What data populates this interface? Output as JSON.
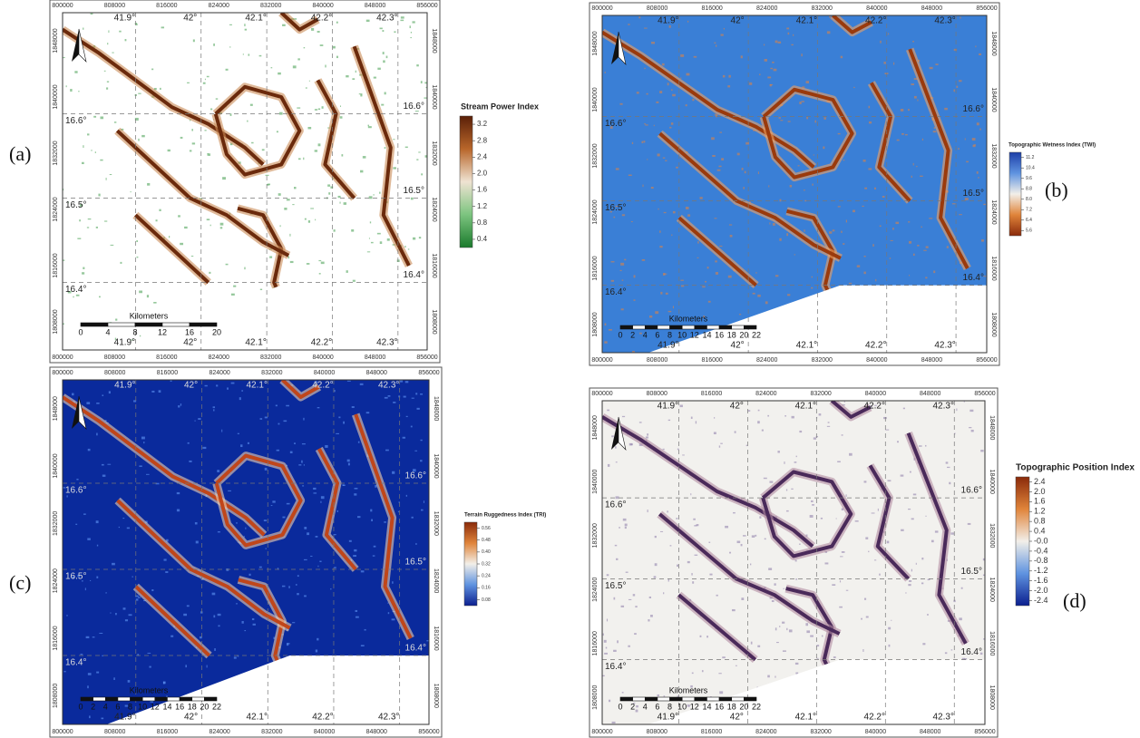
{
  "grid": {
    "eastings": [
      "800000",
      "808000",
      "816000",
      "824000",
      "832000",
      "840000",
      "848000",
      "856000"
    ],
    "northings": [
      "1848000",
      "1840000",
      "1832000",
      "1824000",
      "1816000",
      "1808000"
    ],
    "longitudes": [
      "41.9°",
      "42°",
      "42.1°",
      "42.2°",
      "42.3°"
    ],
    "latitudes": [
      "16.6°",
      "16.5°",
      "16.4°"
    ]
  },
  "panels": [
    {
      "label": "(a)",
      "legend_title": "Stream Power Index",
      "legend_ticks": [
        "3.2",
        "2.8",
        "2.4",
        "2.0",
        "1.6",
        "1.2",
        "0.8",
        "0.4"
      ],
      "legend_colors": [
        "#5a1f08",
        "#b8662a",
        "#efe3d2",
        "#7cc47f",
        "#1a7a2c"
      ],
      "scale_title": "Kilometers",
      "scale_ticks": [
        "0",
        "4",
        "8",
        "12",
        "16",
        "20"
      ]
    },
    {
      "label": "(b)",
      "legend_title": "Topographic Wetness Index (TWI)",
      "legend_ticks": [
        "11.2",
        "10.4",
        "9.6",
        "8.8",
        "8.0",
        "7.2",
        "6.4",
        "5.6"
      ],
      "legend_colors": [
        "#1d3fa8",
        "#5f93e0",
        "#f2efe9",
        "#e0843a",
        "#8a2a0a"
      ],
      "scale_title": "Kilometers",
      "scale_ticks": [
        "0",
        "2",
        "4",
        "6",
        "8",
        "10",
        "12",
        "14",
        "16",
        "18",
        "20",
        "22"
      ]
    },
    {
      "label": "(c)",
      "legend_title": "Terrain Ruggedness Index (TRI)",
      "legend_ticks": [
        "0.56",
        "0.48",
        "0.40",
        "0.32",
        "0.24",
        "0.16",
        "0.08"
      ],
      "legend_colors": [
        "#8a2a0a",
        "#e0843a",
        "#f2efe9",
        "#5f93e0",
        "#0b1f8f"
      ],
      "scale_title": "Kilometers",
      "scale_ticks": [
        "0",
        "2",
        "4",
        "6",
        "8",
        "10",
        "12",
        "14",
        "16",
        "18",
        "20",
        "22"
      ]
    },
    {
      "label": "(d)",
      "legend_title": "Topographic Position Index",
      "legend_ticks": [
        "2.4",
        "2.0",
        "1.6",
        "1.2",
        "0.8",
        "0.4",
        "-0.0",
        "-0.4",
        "-0.8",
        "-1.2",
        "-1.6",
        "-2.0",
        "-2.4"
      ],
      "legend_colors": [
        "#8a2a0a",
        "#e0843a",
        "#f2efe9",
        "#5f93e0",
        "#0b1f8f"
      ],
      "scale_title": "Kilometers",
      "scale_ticks": [
        "0",
        "2",
        "4",
        "6",
        "8",
        "10",
        "12",
        "14",
        "16",
        "18",
        "20",
        "22"
      ]
    }
  ]
}
